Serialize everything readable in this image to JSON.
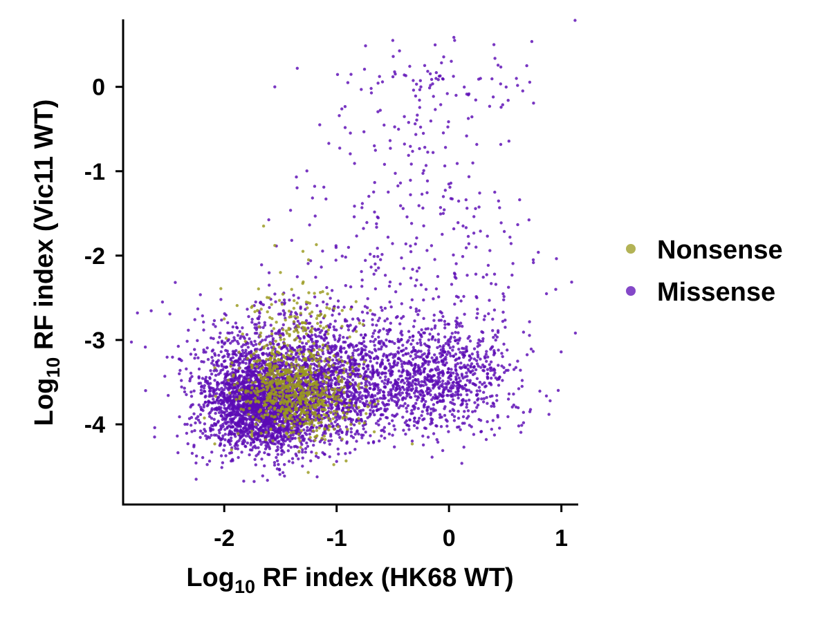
{
  "chart_data": {
    "type": "scatter",
    "title": "",
    "xlabel": {
      "prefix": "Log",
      "sub": "10",
      "rest": " RF index (HK68 WT)"
    },
    "ylabel": {
      "prefix": "Log",
      "sub": "10",
      "rest": " RF index (Vic11 WT)"
    },
    "xlim": [
      -2.9,
      1.15
    ],
    "ylim": [
      -4.95,
      0.8
    ],
    "xticks": [
      -2,
      -1,
      0,
      1
    ],
    "yticks": [
      0,
      -1,
      -2,
      -3,
      -4
    ],
    "xtick_labels": [
      "-2",
      "-1",
      "0",
      "1"
    ],
    "ytick_labels": [
      "0",
      "-1",
      "-2",
      "-3",
      "-4"
    ],
    "grid": false,
    "legend_position": "right",
    "series": [
      {
        "name": "Missense",
        "color": "#5B0BB5",
        "draw_order": 1,
        "clusters": [
          {
            "n": 2600,
            "center": [
              -1.65,
              -3.75
            ],
            "sd": [
              0.28,
              0.3
            ]
          },
          {
            "n": 900,
            "center": [
              -1.05,
              -3.6
            ],
            "sd": [
              0.3,
              0.28
            ]
          },
          {
            "n": 1000,
            "center": [
              -0.15,
              -3.45
            ],
            "sd": [
              0.38,
              0.32
            ]
          },
          {
            "n": 420,
            "center": [
              -1.3,
              -3.0
            ],
            "sd": [
              0.5,
              0.25
            ]
          },
          {
            "n": 170,
            "center": [
              -0.2,
              -2.4
            ],
            "sd": [
              0.6,
              0.45
            ]
          },
          {
            "n": 130,
            "center": [
              -0.3,
              -1.2
            ],
            "sd": [
              0.55,
              0.6
            ]
          },
          {
            "n": 80,
            "center": [
              -0.1,
              0.0
            ],
            "sd": [
              0.45,
              0.25
            ]
          }
        ],
        "points": [
          [
            -2.7,
            -3.6
          ],
          [
            -2.62,
            -4.15
          ],
          [
            -2.55,
            -2.55
          ],
          [
            -2.4,
            -3.4
          ],
          [
            -2.35,
            -4.0
          ],
          [
            -2.25,
            -4.65
          ],
          [
            0.95,
            -2.4
          ],
          [
            0.75,
            -2.05
          ],
          [
            0.6,
            0.1
          ],
          [
            0.4,
            0.5
          ],
          [
            0.05,
            0.55
          ],
          [
            -0.5,
            0.55
          ],
          [
            -1.35,
            0.22
          ],
          [
            -1.55,
            0.0
          ],
          [
            -1.15,
            -0.45
          ],
          [
            -1.6,
            -2.35
          ],
          [
            -1.35,
            -2.25
          ],
          [
            0.5,
            -2.85
          ],
          [
            0.65,
            -3.55
          ],
          [
            0.72,
            -3.85
          ],
          [
            -0.9,
            0.05
          ],
          [
            -0.25,
            0.0
          ],
          [
            0.28,
            0.1
          ],
          [
            -0.05,
            -1.3
          ]
        ]
      },
      {
        "name": "Nonsense",
        "color": "#9A9A1E",
        "draw_order": 2,
        "clusters": [
          {
            "n": 700,
            "center": [
              -1.38,
              -3.62
            ],
            "sd": [
              0.24,
              0.26
            ]
          },
          {
            "n": 130,
            "center": [
              -1.35,
              -2.85
            ],
            "sd": [
              0.22,
              0.25
            ]
          },
          {
            "n": 40,
            "center": [
              -1.1,
              -3.9
            ],
            "sd": [
              0.3,
              0.2
            ]
          }
        ],
        "points": [
          [
            -1.65,
            -1.65
          ],
          [
            -1.55,
            -1.88
          ],
          [
            -1.3,
            -1.95
          ],
          [
            -1.25,
            -2.05
          ],
          [
            -1.5,
            -2.2
          ],
          [
            -1.18,
            -1.87
          ],
          [
            -1.6,
            -2.5
          ],
          [
            -1.75,
            -2.6
          ],
          [
            -1.4,
            -2.4
          ],
          [
            -0.95,
            -2.65
          ],
          [
            -0.7,
            -2.65
          ],
          [
            -2.0,
            -2.75
          ]
        ]
      }
    ]
  }
}
